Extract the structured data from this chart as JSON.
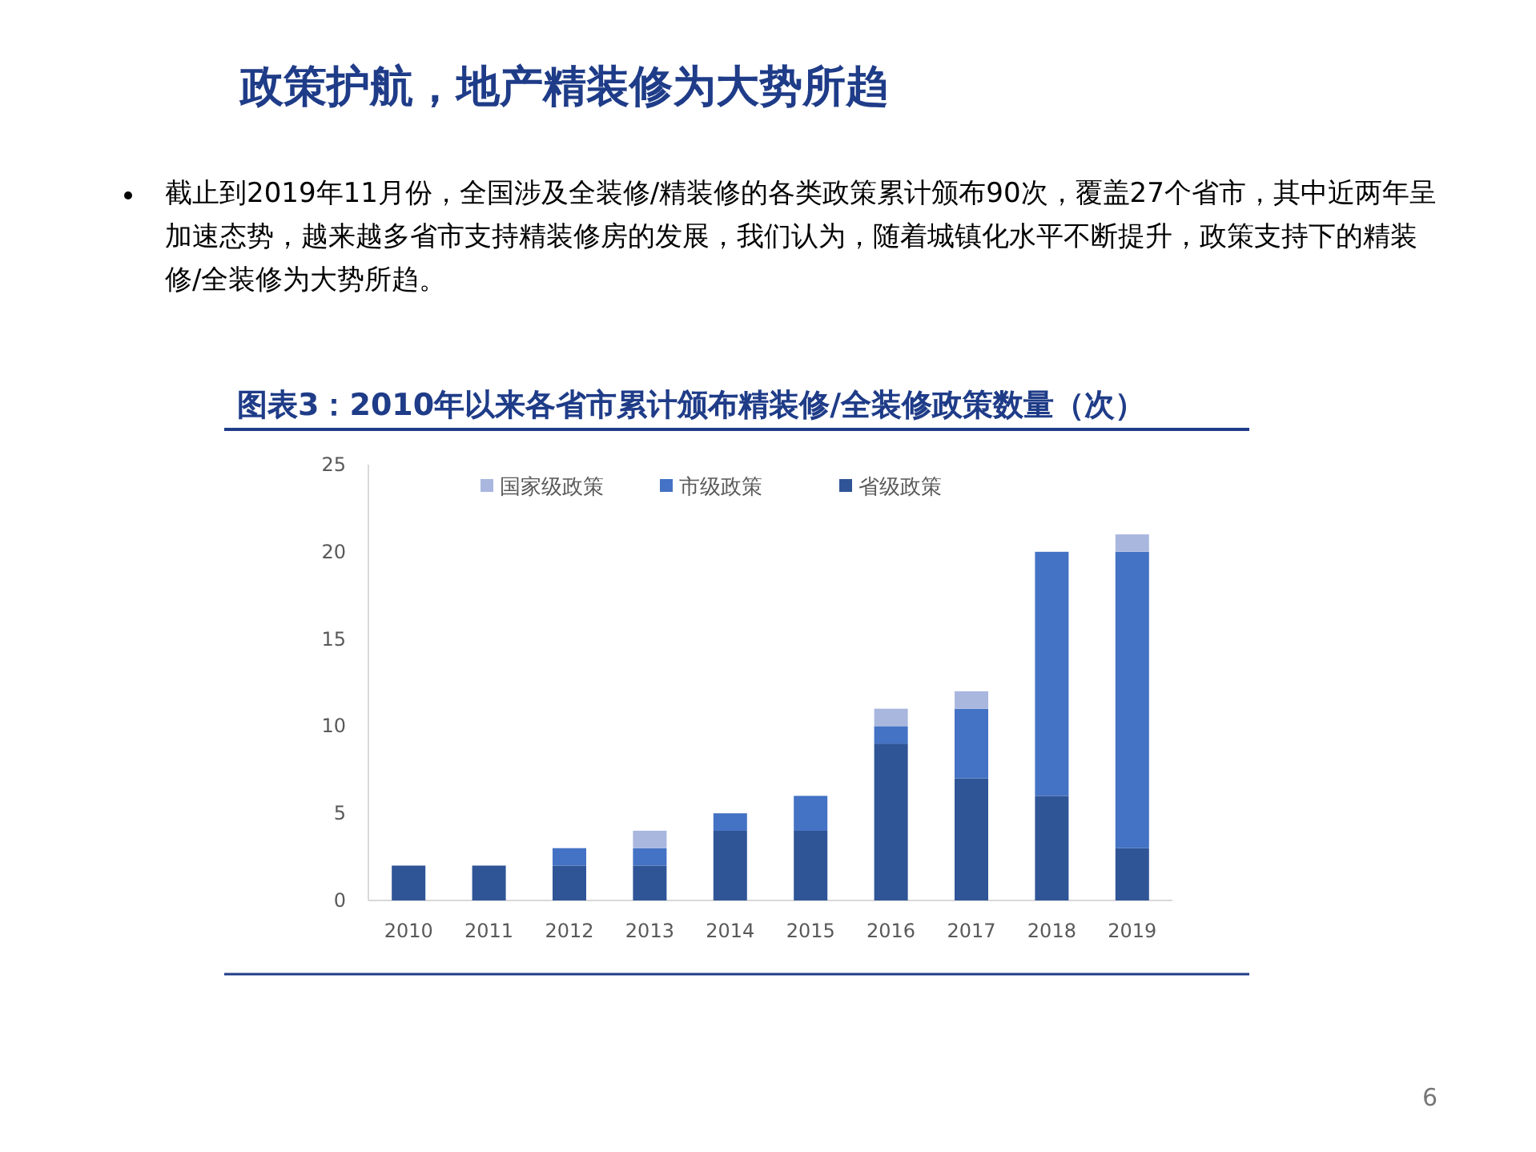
{
  "chart_data": {
    "type": "bar",
    "stacked": true,
    "title": "政策护航，地产精装修为大势所趋",
    "subtitle": "图表3：2010年以来各省市累计颁布精装修/全装修政策数量（次）",
    "annotations": [
      "截止到2019年11月份，全国涉及全装修/精装修的各类政策累计颁布90次，覆盖27个省市，其中近两年呈加速态势，越来越多省市支持精装修房的发展，我们认为，随着城镇化水平不断提升，政策支持下的精装修/全装修为大势所趋。",
      "6"
    ],
    "categories": [
      "2010",
      "2011",
      "2012",
      "2013",
      "2014",
      "2015",
      "2016",
      "2017",
      "2018",
      "2019"
    ],
    "series": [
      {
        "name": "省级政策",
        "color": "#2f5597",
        "values": [
          2,
          2,
          2,
          2,
          4,
          4,
          9,
          7,
          6,
          3
        ]
      },
      {
        "name": "市级政策",
        "color": "#4472c4",
        "values": [
          0,
          0,
          1,
          1,
          1,
          2,
          1,
          4,
          14,
          17
        ]
      },
      {
        "name": "国家级政策",
        "color": "#a9b7df",
        "values": [
          0,
          0,
          0,
          1,
          0,
          0,
          1,
          1,
          0,
          1
        ]
      }
    ],
    "ylim": [
      0,
      25
    ],
    "yticks": [
      0,
      5,
      10,
      15,
      20,
      25
    ],
    "grid": false,
    "legend": "top"
  }
}
